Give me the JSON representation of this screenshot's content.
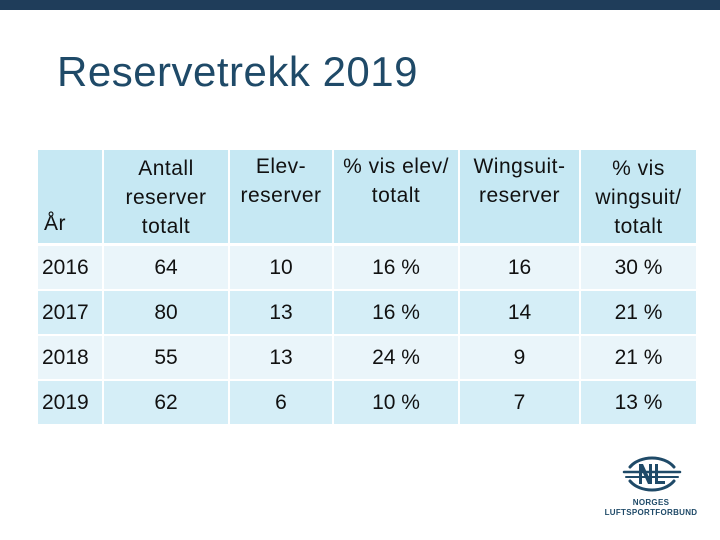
{
  "slide": {
    "title": "Reservetrekk 2019"
  },
  "table": {
    "headers": [
      [
        "År"
      ],
      [
        "Antall",
        "reserver",
        "totalt"
      ],
      [
        "Elev-",
        "reserver"
      ],
      [
        "% vis elev/",
        "totalt"
      ],
      [
        "Wingsuit-",
        "reserver"
      ],
      [
        "% vis",
        "wingsuit/",
        "totalt"
      ]
    ],
    "rows": [
      [
        "2016",
        "64",
        "10",
        "16 %",
        "16",
        "30 %"
      ],
      [
        "2017",
        "80",
        "13",
        "16 %",
        "14",
        "21 %"
      ],
      [
        "2018",
        "55",
        "13",
        "24 %",
        "9",
        "21 %"
      ],
      [
        "2019",
        "62",
        "6",
        "10 %",
        "7",
        "13 %"
      ]
    ]
  },
  "logo": {
    "line1": "NORGES",
    "line2": "LUFTSPORTFORBUND",
    "color": "#1f4a68"
  },
  "colors": {
    "topbar": "#1f3d5a",
    "title": "#1f4a68",
    "header_bg": "#c6e8f3",
    "row_light": "#eaf5fa",
    "row_dark": "#d5eef7"
  }
}
